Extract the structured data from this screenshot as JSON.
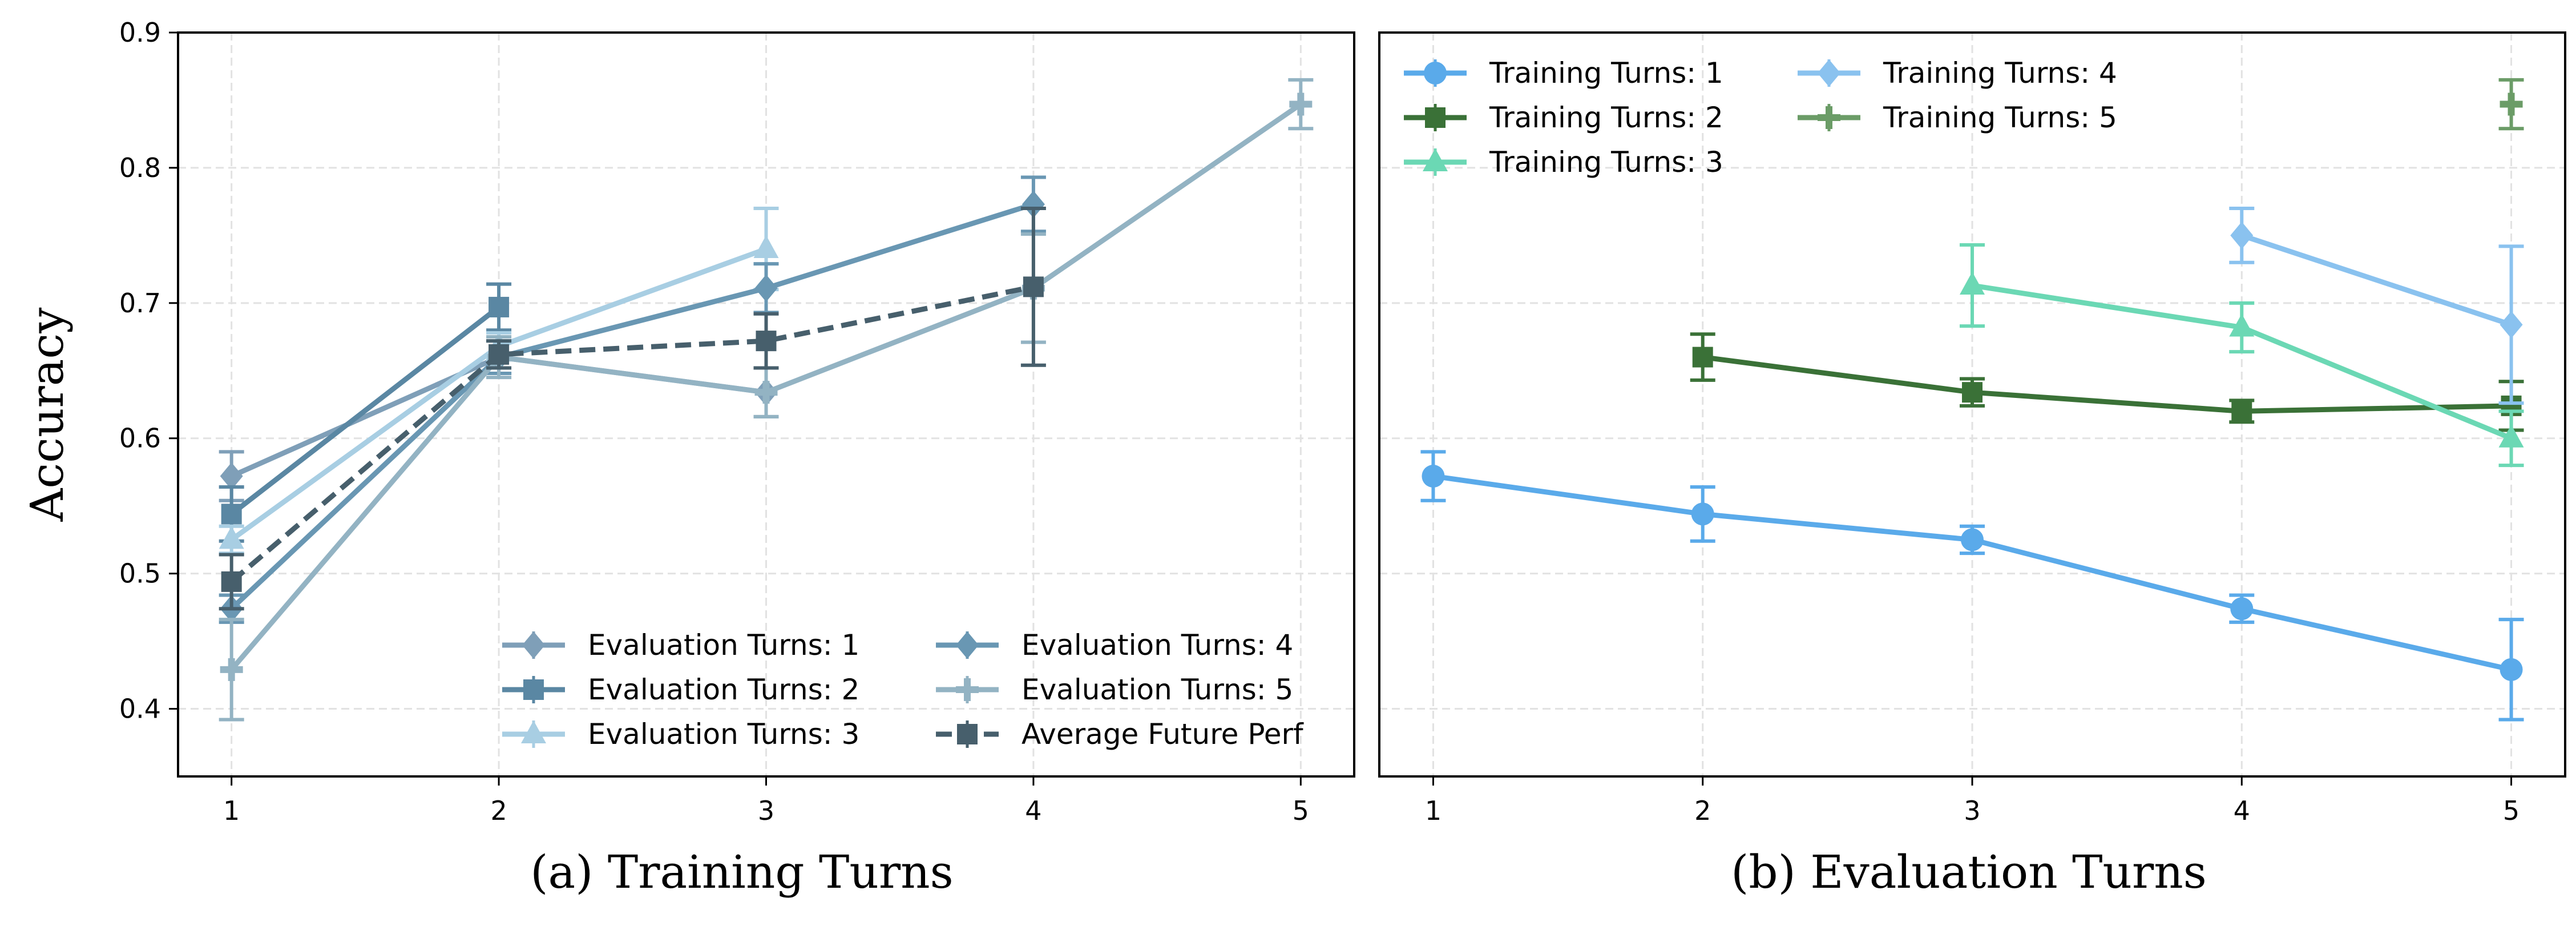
{
  "chart_data": [
    {
      "type": "line",
      "panel": "a",
      "xlabel": "(a) Training Turns",
      "ylabel": "Accuracy",
      "x": [
        1,
        2,
        3,
        4,
        5
      ],
      "xlim": [
        0.8,
        5.2
      ],
      "ylim": [
        0.35,
        0.9
      ],
      "yticks": [
        0.4,
        0.5,
        0.6,
        0.7,
        0.8,
        0.9
      ],
      "ytick_labels": [
        "0.4",
        "0.5",
        "0.6",
        "0.7",
        "0.8",
        "0.9"
      ],
      "xtick_labels": [
        "1",
        "2",
        "3",
        "4",
        "5"
      ],
      "grid": true,
      "legend_position": "lower-right",
      "series": [
        {
          "name": "Evaluation Turns: 1",
          "color": "#7f9fb8",
          "marker": "diamond",
          "dash": false,
          "x": [
            1,
            2,
            3
          ],
          "y": [
            0.572,
            0.66,
            0.634
          ],
          "err": [
            0.018,
            0.012,
            0.018
          ]
        },
        {
          "name": "Evaluation Turns: 2",
          "color": "#5a87a3",
          "marker": "square",
          "dash": false,
          "x": [
            1,
            2
          ],
          "y": [
            0.544,
            0.697
          ],
          "err": [
            0.02,
            0.017
          ]
        },
        {
          "name": "Evaluation Turns: 3",
          "color": "#a8cee3",
          "marker": "triangle",
          "dash": false,
          "x": [
            1,
            2,
            3
          ],
          "y": [
            0.525,
            0.668,
            0.74
          ],
          "err": [
            0.01,
            0.01,
            0.03
          ]
        },
        {
          "name": "Evaluation Turns: 4",
          "color": "#6997b3",
          "marker": "diamond",
          "dash": false,
          "x": [
            1,
            2,
            3,
            4
          ],
          "y": [
            0.474,
            0.66,
            0.711,
            0.773
          ],
          "err": [
            0.01,
            0.012,
            0.018,
            0.02
          ]
        },
        {
          "name": "Evaluation Turns: 5",
          "color": "#93b3c3",
          "marker": "plus",
          "dash": false,
          "x": [
            1,
            2,
            3,
            4,
            5
          ],
          "y": [
            0.429,
            0.66,
            0.634,
            0.711,
            0.847
          ],
          "err": [
            0.037,
            0.015,
            0.018,
            0.04,
            0.018
          ]
        },
        {
          "name": "Average Future Perf",
          "color": "#475f6c",
          "marker": "square",
          "dash": true,
          "x": [
            1,
            2,
            3,
            4
          ],
          "y": [
            0.494,
            0.662,
            0.672,
            0.712
          ],
          "err": [
            0.02,
            0.01,
            0.02,
            0.058
          ]
        }
      ]
    },
    {
      "type": "line",
      "panel": "b",
      "xlabel": "(b) Evaluation Turns",
      "ylabel": "",
      "x": [
        1,
        2,
        3,
        4,
        5
      ],
      "xlim": [
        0.8,
        5.2
      ],
      "ylim": [
        0.35,
        0.9
      ],
      "yticks": [],
      "ytick_labels": [],
      "xtick_labels": [
        "1",
        "2",
        "3",
        "4",
        "5"
      ],
      "grid": true,
      "legend_position": "upper-left",
      "series": [
        {
          "name": "Training Turns: 1",
          "color": "#5aaaea",
          "marker": "circle",
          "x": [
            1,
            2,
            3,
            4,
            5
          ],
          "y": [
            0.572,
            0.544,
            0.525,
            0.474,
            0.429
          ],
          "err": [
            0.018,
            0.02,
            0.01,
            0.01,
            0.037
          ]
        },
        {
          "name": "Training Turns: 2",
          "color": "#3a7137",
          "marker": "square",
          "x": [
            2,
            3,
            4,
            5
          ],
          "y": [
            0.66,
            0.634,
            0.62,
            0.624
          ],
          "err": [
            0.017,
            0.01,
            0.008,
            0.018
          ]
        },
        {
          "name": "Training Turns: 3",
          "color": "#6bd8b4",
          "marker": "triangle",
          "x": [
            3,
            4,
            5
          ],
          "y": [
            0.713,
            0.682,
            0.6
          ],
          "err": [
            0.03,
            0.018,
            0.02
          ]
        },
        {
          "name": "Training Turns: 4",
          "color": "#8ac2ef",
          "marker": "diamond",
          "x": [
            4,
            5
          ],
          "y": [
            0.75,
            0.684
          ],
          "err": [
            0.02,
            0.058
          ]
        },
        {
          "name": "Training Turns: 5",
          "color": "#6b9c67",
          "marker": "plus",
          "x": [
            5
          ],
          "y": [
            0.847
          ],
          "err": [
            0.018
          ]
        }
      ]
    }
  ]
}
